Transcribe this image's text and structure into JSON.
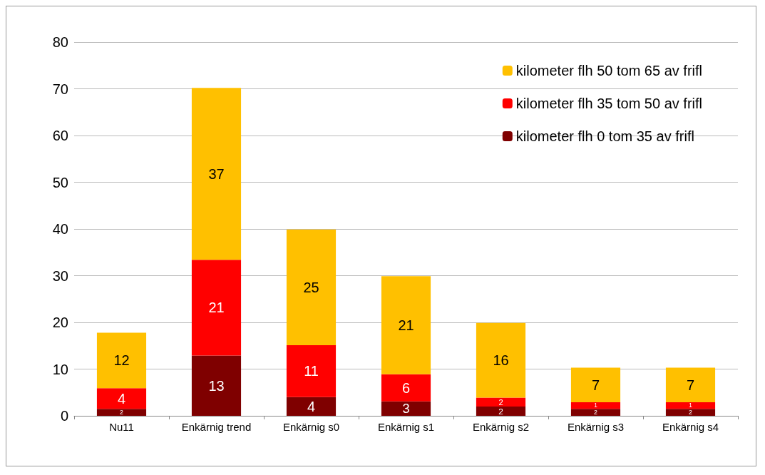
{
  "chart_data": {
    "type": "bar",
    "stacked": true,
    "categories": [
      "Nu11",
      "Enkärnig trend",
      "Enkärnig s0",
      "Enkärnig s1",
      "Enkärnig s2",
      "Enkärnig s3",
      "Enkärnig s4"
    ],
    "series": [
      {
        "name": "kilometer flh 0 tom 35 av frifl",
        "color": "#7f0000",
        "values": [
          1.5,
          12.9,
          4.0,
          3.1,
          2.0,
          1.5,
          1.5
        ],
        "value_labels": [
          "2",
          "13",
          "4",
          "3",
          "2",
          "2",
          "2"
        ]
      },
      {
        "name": "kilometer flh 35 tom 50 av frifl",
        "color": "#ff0000",
        "values": [
          4.4,
          20.5,
          11.1,
          5.8,
          1.9,
          1.4,
          1.4
        ],
        "value_labels": [
          "4",
          "21",
          "11",
          "6",
          "2",
          "1",
          "1"
        ]
      },
      {
        "name": "kilometer flh 50 tom 65 av frifl",
        "color": "#ffc000",
        "values": [
          11.9,
          36.8,
          24.8,
          21.0,
          16.0,
          7.4,
          7.4
        ],
        "value_labels": [
          "12",
          "37",
          "25",
          "21",
          "16",
          "7",
          "7"
        ]
      }
    ],
    "ylim": [
      0,
      80
    ],
    "yticks": [
      0,
      10,
      20,
      30,
      40,
      50,
      60,
      70,
      80
    ],
    "grid": "y",
    "legend": "top right"
  }
}
